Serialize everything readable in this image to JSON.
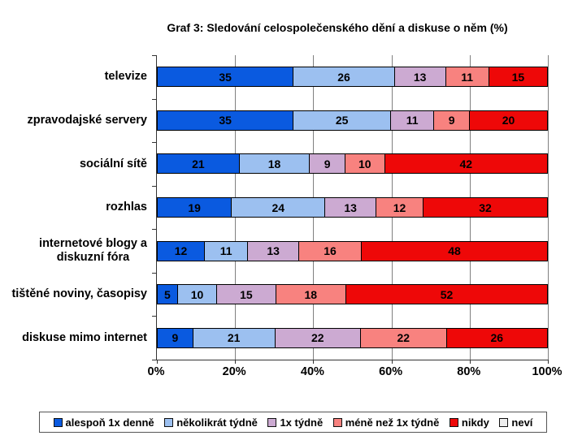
{
  "title": "Graf 3: Sledování celospolečenského dění a diskuse o něm (%)",
  "chart_data": {
    "type": "bar",
    "orientation": "horizontal",
    "stacked": true,
    "unit": "%",
    "title": "Graf 3: Sledování celospolečenského dění a diskuse o něm (%)",
    "categories": [
      "televize",
      "zpravodajské servery",
      "sociální sítě",
      "rozhlas",
      "internetové blogy a\ndiskuzní fóra",
      "tištěné noviny, časopisy",
      "diskuse mimo internet"
    ],
    "series": [
      {
        "name": "alespoň 1x denně",
        "color": "#0a5ae0",
        "values": [
          35,
          35,
          21,
          19,
          12,
          5,
          9
        ]
      },
      {
        "name": "několikrát týdně",
        "color": "#9cc0f0",
        "values": [
          26,
          25,
          18,
          24,
          11,
          10,
          21
        ]
      },
      {
        "name": "1x týdně",
        "color": "#ccaad2",
        "values": [
          13,
          11,
          9,
          13,
          13,
          15,
          22
        ]
      },
      {
        "name": "méně než 1x týdně",
        "color": "#f8827f",
        "values": [
          11,
          9,
          10,
          12,
          16,
          18,
          22
        ]
      },
      {
        "name": "nikdy",
        "color": "#ee0808",
        "values": [
          15,
          20,
          42,
          32,
          48,
          52,
          26
        ]
      },
      {
        "name": "neví",
        "color": "#ededed",
        "values": [
          0,
          0,
          0,
          0,
          0,
          0,
          0
        ]
      }
    ],
    "x_axis": {
      "min": 0,
      "max": 100,
      "tick_labels": [
        "0%",
        "20%",
        "40%",
        "60%",
        "80%",
        "100%"
      ]
    },
    "grid": true,
    "legend_position": "bottom",
    "colors": {
      "background": "#ffffff",
      "grid": "#808080",
      "axis": "#333333",
      "bar_border": "#000000",
      "text": "#000000"
    }
  }
}
